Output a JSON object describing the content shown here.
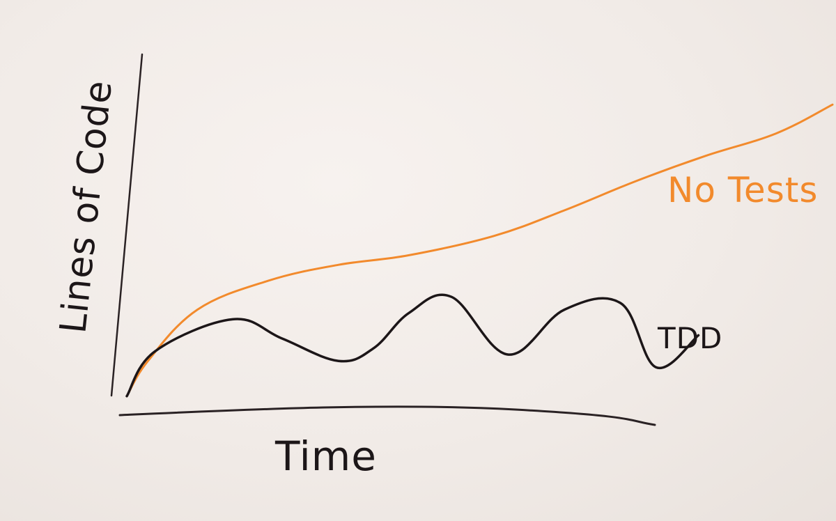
{
  "chart_data": {
    "type": "line",
    "title": "",
    "xlabel": "Time",
    "ylabel": "Lines of Code",
    "xlim": [
      0,
      100
    ],
    "ylim": [
      0,
      100
    ],
    "grid": false,
    "legend": "inline-labels",
    "series": [
      {
        "name": "No Tests",
        "color": "#f28a2c",
        "x": [
          0,
          3,
          10,
          20,
          30,
          40,
          52,
          62,
          72,
          82,
          92,
          100
        ],
        "y": [
          2,
          13,
          29,
          38,
          43,
          46,
          52,
          60,
          69,
          77,
          84,
          93
        ]
      },
      {
        "name": "TDD",
        "color": "#1c1618",
        "x": [
          0,
          4,
          15,
          22,
          30,
          35,
          40,
          46,
          54,
          62,
          70,
          75,
          81
        ],
        "y": [
          2,
          16,
          26,
          20,
          13,
          17,
          28,
          33,
          15,
          29,
          31,
          11,
          21
        ]
      }
    ]
  }
}
